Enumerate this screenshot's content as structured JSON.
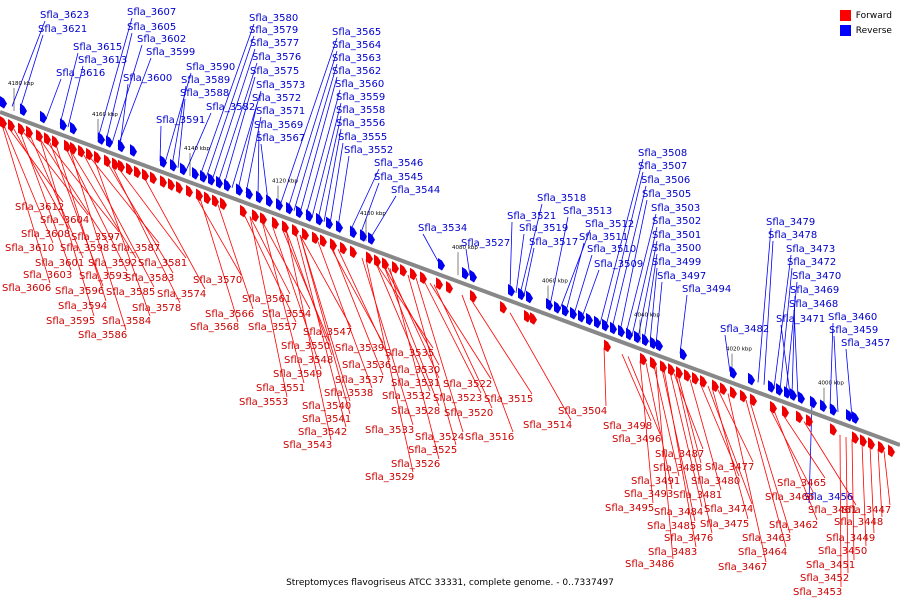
{
  "legend": {
    "forward_label": "Forward",
    "reverse_label": "Reverse",
    "forward_color": "#ff0000",
    "reverse_color": "#0000ff"
  },
  "caption": "Streptomyces flavogriseus ATCC 33331, complete genome. - 0..7337497",
  "ticks": [
    "4180 kbp",
    "4160 kbp",
    "4140 kbp",
    "4120 kbp",
    "4100 kbp",
    "4080 kbp",
    "4060 kbp",
    "4040 kbp",
    "4020 kbp",
    "4000 kbp"
  ],
  "reverse_labels": [
    "Sfla_3623",
    "Sfla_3621",
    "Sfla_3607",
    "Sfla_3605",
    "Sfla_3615",
    "Sfla_3613",
    "Sfla_3602",
    "Sfla_3599",
    "Sfla_3616",
    "Sfla_3600",
    "Sfla_3590",
    "Sfla_3589",
    "Sfla_3588",
    "Sfla_3591",
    "Sfla_3580",
    "Sfla_3579",
    "Sfla_3577",
    "Sfla_3576",
    "Sfla_3575",
    "Sfla_3573",
    "Sfla_3572",
    "Sfla_3582",
    "Sfla_3571",
    "Sfla_3569",
    "Sfla_3567",
    "Sfla_3565",
    "Sfla_3564",
    "Sfla_3563",
    "Sfla_3562",
    "Sfla_3560",
    "Sfla_3559",
    "Sfla_3558",
    "Sfla_3556",
    "Sfla_3555",
    "Sfla_3552",
    "Sfla_3546",
    "Sfla_3545",
    "Sfla_3544",
    "Sfla_3534",
    "Sfla_3527",
    "Sfla_3518",
    "Sfla_3513",
    "Sfla_3521",
    "Sfla_3519",
    "Sfla_3512",
    "Sfla_3517",
    "Sfla_3511",
    "Sfla_3510",
    "Sfla_3509",
    "Sfla_3508",
    "Sfla_3507",
    "Sfla_3506",
    "Sfla_3505",
    "Sfla_3503",
    "Sfla_3502",
    "Sfla_3501",
    "Sfla_3500",
    "Sfla_3499",
    "Sfla_3497",
    "Sfla_3494",
    "Sfla_3482",
    "Sfla_3479",
    "Sfla_3478",
    "Sfla_3473",
    "Sfla_3472",
    "Sfla_3470",
    "Sfla_3469",
    "Sfla_3468",
    "Sfla_3471",
    "Sfla_3460",
    "Sfla_3459",
    "Sfla_3457",
    "Sfla_3456"
  ],
  "forward_labels": [
    "Sfla_3612",
    "Sfla_3604",
    "Sfla_3608",
    "Sfla_3597",
    "Sfla_3610",
    "Sfla_3598",
    "Sfla_3587",
    "Sfla_3601",
    "Sfla_3592",
    "Sfla_3581",
    "Sfla_3603",
    "Sfla_3593",
    "Sfla_3583",
    "Sfla_3606",
    "Sfla_3596",
    "Sfla_3585",
    "Sfla_3574",
    "Sfla_3570",
    "Sfla_3594",
    "Sfla_3578",
    "Sfla_3595",
    "Sfla_3584",
    "Sfla_3586",
    "Sfla_3561",
    "Sfla_3566",
    "Sfla_3554",
    "Sfla_3568",
    "Sfla_3557",
    "Sfla_3547",
    "Sfla_3550",
    "Sfla_3539",
    "Sfla_3548",
    "Sfla_3536",
    "Sfla_3549",
    "Sfla_3537",
    "Sfla_3535",
    "Sfla_3551",
    "Sfla_3538",
    "Sfla_3530",
    "Sfla_3553",
    "Sfla_3531",
    "Sfla_3522",
    "Sfla_3540",
    "Sfla_3532",
    "Sfla_3523",
    "Sfla_3515",
    "Sfla_3541",
    "Sfla_3528",
    "Sfla_3520",
    "Sfla_3514",
    "Sfla_3504",
    "Sfla_3542",
    "Sfla_3533",
    "Sfla_3524",
    "Sfla_3516",
    "Sfla_3543",
    "Sfla_3525",
    "Sfla_3526",
    "Sfla_3529",
    "Sfla_3498",
    "Sfla_3496",
    "Sfla_3487",
    "Sfla_3488",
    "Sfla_3477",
    "Sfla_3491",
    "Sfla_3480",
    "Sfla_3493",
    "Sfla_3481",
    "Sfla_3465",
    "Sfla_3495",
    "Sfla_3484",
    "Sfla_3474",
    "Sfla_3466",
    "Sfla_3461",
    "Sfla_3485",
    "Sfla_3475",
    "Sfla_3462",
    "Sfla_3476",
    "Sfla_3463",
    "Sfla_3483",
    "Sfla_3464",
    "Sfla_3486",
    "Sfla_3467",
    "Sfla_3447",
    "Sfla_3448",
    "Sfla_3449",
    "Sfla_3450",
    "Sfla_3451",
    "Sfla_3452",
    "Sfla_3453"
  ]
}
